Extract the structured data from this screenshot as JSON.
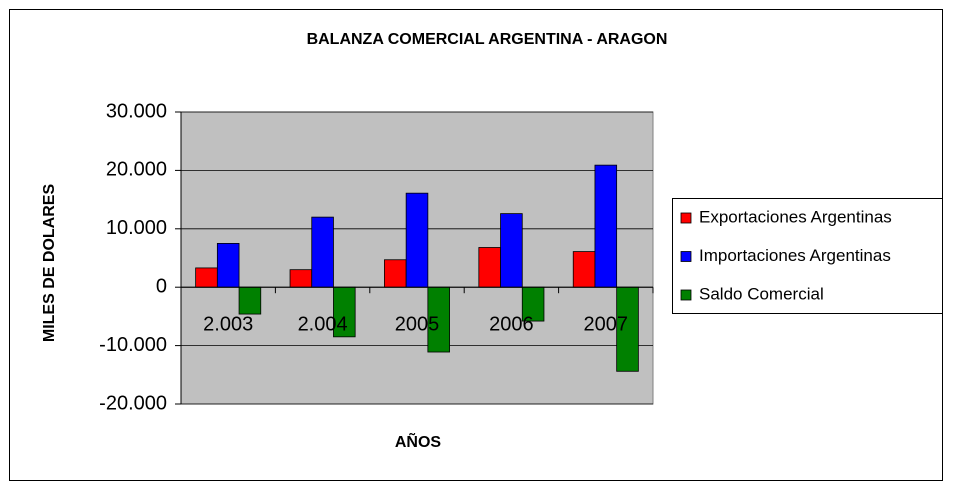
{
  "chart_data": {
    "type": "bar",
    "title": "BALANZA COMERCIAL ARGENTINA - ARAGON",
    "x_label": "AÑOS",
    "y_label": "MILES DE DOLARES",
    "categories": [
      "2.003",
      "2.004",
      "2005",
      "2006",
      "2007"
    ],
    "series": [
      {
        "name": "Exportaciones Argentinas",
        "color": "#ff0000",
        "values": [
          3300,
          3000,
          4700,
          6800,
          6100
        ]
      },
      {
        "name": "Importaciones Argentinas",
        "color": "#0000ff",
        "values": [
          7500,
          12000,
          16100,
          12600,
          20900
        ]
      },
      {
        "name": "Saldo Comercial",
        "color": "#008000",
        "values": [
          -4600,
          -8500,
          -11100,
          -5800,
          -14400
        ]
      }
    ],
    "ylim": [
      -20000,
      30000
    ],
    "yticks": [
      {
        "value": -20000,
        "label": "-20.000"
      },
      {
        "value": -10000,
        "label": "-10.000"
      },
      0,
      {
        "value": 10000,
        "label": "10.000"
      },
      {
        "value": 20000,
        "label": "20.000"
      },
      {
        "value": 30000,
        "label": "30.000"
      }
    ],
    "grid": true,
    "plot_background": "#c0c0c0",
    "legend": "right"
  }
}
